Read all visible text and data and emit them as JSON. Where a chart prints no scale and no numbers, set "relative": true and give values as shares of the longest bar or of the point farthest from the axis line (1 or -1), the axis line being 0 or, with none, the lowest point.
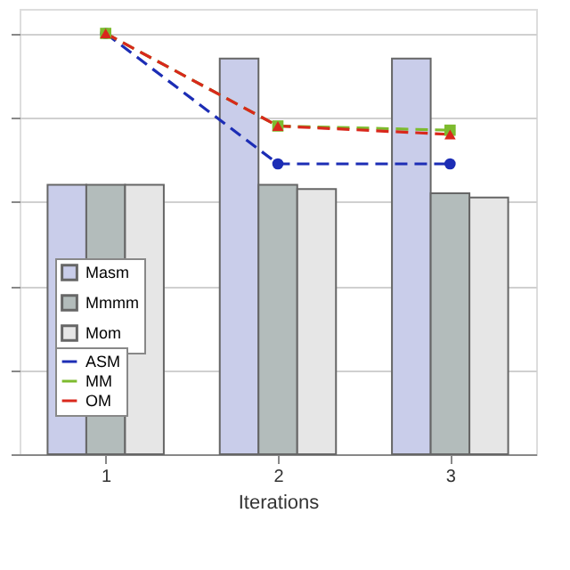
{
  "chart_data": {
    "type": "bar",
    "xlabel": "Iterations",
    "categories": [
      "1",
      "2",
      "3"
    ],
    "relative": true,
    "grid": "y",
    "legend": "bottom left",
    "series": [
      {
        "name": "Masm",
        "type": "bar",
        "color": "#c9cdea",
        "values": [
          0.64,
          0.94,
          0.94
        ]
      },
      {
        "name": "Mmmm",
        "type": "bar",
        "color": "#b3bcbb",
        "values": [
          0.64,
          0.64,
          0.62
        ]
      },
      {
        "name": "Mom",
        "type": "bar",
        "color": "#e6e6e6",
        "values": [
          0.64,
          0.63,
          0.61
        ]
      },
      {
        "name": "ASM",
        "type": "line",
        "color": "#1c2db5",
        "line_style": "dashed",
        "marker": "circle",
        "values": [
          1.0,
          0.69,
          0.69
        ]
      },
      {
        "name": "MM",
        "type": "line",
        "color": "#7dbb2e",
        "line_style": "dashed",
        "marker": "square",
        "values": [
          1.0,
          0.78,
          0.77
        ]
      },
      {
        "name": "OM",
        "type": "line",
        "color": "#d9281c",
        "line_style": "dashed",
        "marker": "triangle",
        "values": [
          1.0,
          0.78,
          0.76
        ]
      }
    ]
  }
}
